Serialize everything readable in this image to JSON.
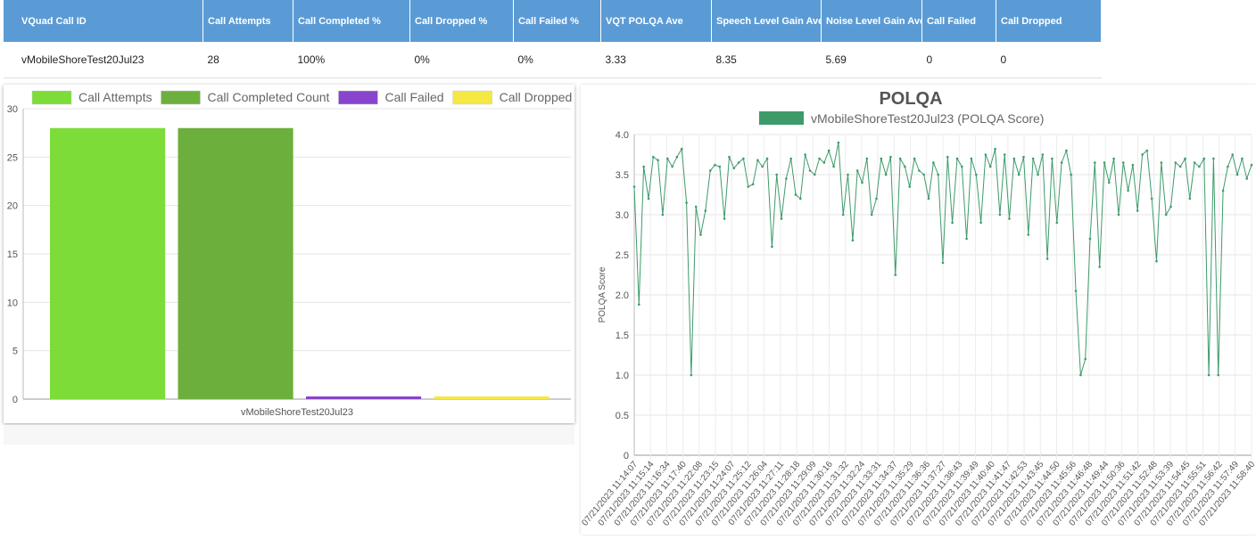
{
  "table": {
    "headers": [
      "VQuad Call ID",
      "Call Attempts",
      "Call Completed %",
      "Call Dropped %",
      "Call Failed %",
      "VQT POLQA Ave",
      "Speech Level Gain Ave",
      "Noise Level Gain Ave",
      "Call Failed",
      "Call Dropped"
    ],
    "rows": [
      [
        "vMobileShoreTest20Jul23",
        "28",
        "100%",
        "0%",
        "0%",
        "3.33",
        "8.35",
        "5.69",
        "0",
        "0"
      ]
    ]
  },
  "chart_data": [
    {
      "type": "bar",
      "title": "",
      "categories": [
        "vMobileShoreTest20Jul23"
      ],
      "series": [
        {
          "name": "Call Attempts",
          "values": [
            28
          ],
          "color": "#7ddc38"
        },
        {
          "name": "Call Completed Count",
          "values": [
            28
          ],
          "color": "#6daf3c"
        },
        {
          "name": "Call Failed",
          "values": [
            0
          ],
          "color": "#8844cc"
        },
        {
          "name": "Call Dropped",
          "values": [
            0
          ],
          "color": "#f4e842"
        }
      ],
      "xlabel": "",
      "ylabel": "",
      "ylim": [
        0,
        30
      ],
      "yticks": [
        0,
        5,
        10,
        15,
        20,
        25,
        30
      ],
      "legend": "top",
      "grid": true
    },
    {
      "type": "line",
      "title": "POLQA",
      "series_name": "vMobileShoreTest20Jul23 (POLQA Score)",
      "color": "#3d9b69",
      "xlabel": "",
      "ylabel": "POLQA Score",
      "ylim": [
        0,
        4.0
      ],
      "yticks": [
        "0",
        "0.5",
        "1.0",
        "1.5",
        "2.0",
        "2.5",
        "3.0",
        "3.5",
        "4.0"
      ],
      "xtick_labels": [
        "07/21/2023 11:14:07",
        "07/21/2023 11:15:14",
        "07/21/2023 11:16:34",
        "07/21/2023 11:17:40",
        "07/21/2023 11:22:08",
        "07/21/2023 11:23:15",
        "07/21/2023 11:24:07",
        "07/21/2023 11:25:12",
        "07/21/2023 11:26:04",
        "07/21/2023 11:27:11",
        "07/21/2023 11:28:18",
        "07/21/2023 11:29:09",
        "07/21/2023 11:30:16",
        "07/21/2023 11:31:32",
        "07/21/2023 11:32:24",
        "07/21/2023 11:33:31",
        "07/21/2023 11:34:37",
        "07/21/2023 11:35:29",
        "07/21/2023 11:36:36",
        "07/21/2023 11:37:27",
        "07/21/2023 11:38:43",
        "07/21/2023 11:39:49",
        "07/21/2023 11:40:40",
        "07/21/2023 11:41:47",
        "07/21/2023 11:42:53",
        "07/21/2023 11:43:45",
        "07/21/2023 11:44:50",
        "07/21/2023 11:45:56",
        "07/21/2023 11:46:48",
        "07/21/2023 11:49:44",
        "07/21/2023 11:50:36",
        "07/21/2023 11:51:42",
        "07/21/2023 11:52:48",
        "07/21/2023 11:53:39",
        "07/21/2023 11:54:45",
        "07/21/2023 11:55:51",
        "07/21/2023 11:56:42",
        "07/21/2023 11:57:49",
        "07/21/2023 11:58:40"
      ],
      "values": [
        3.35,
        1.88,
        3.6,
        3.2,
        3.72,
        3.68,
        3.0,
        3.7,
        3.6,
        3.72,
        3.82,
        3.15,
        1.0,
        3.1,
        2.75,
        3.05,
        3.55,
        3.62,
        3.6,
        2.95,
        3.72,
        3.58,
        3.65,
        3.7,
        3.35,
        3.38,
        3.68,
        3.6,
        3.7,
        2.6,
        3.5,
        2.95,
        3.45,
        3.7,
        3.25,
        3.2,
        3.75,
        3.55,
        3.5,
        3.7,
        3.65,
        3.8,
        3.6,
        3.9,
        3.0,
        3.5,
        2.68,
        3.55,
        3.4,
        3.7,
        3.0,
        3.2,
        3.7,
        3.5,
        3.72,
        2.25,
        3.7,
        3.6,
        3.35,
        3.7,
        3.55,
        3.5,
        3.2,
        3.65,
        3.5,
        2.4,
        3.72,
        2.9,
        3.7,
        3.6,
        2.7,
        3.7,
        3.5,
        2.9,
        3.75,
        3.6,
        3.82,
        3.0,
        3.75,
        2.95,
        3.7,
        3.5,
        3.72,
        2.75,
        3.7,
        3.5,
        3.75,
        2.45,
        3.7,
        2.9,
        3.65,
        3.8,
        3.5,
        2.05,
        1.0,
        1.2,
        2.7,
        3.65,
        2.35,
        3.65,
        3.4,
        3.7,
        3.0,
        3.65,
        3.3,
        3.62,
        3.05,
        3.75,
        3.8,
        3.2,
        2.42,
        3.65,
        3.0,
        3.1,
        3.65,
        3.6,
        3.7,
        3.2,
        3.65,
        3.6,
        3.7,
        1.0,
        3.7,
        1.0,
        3.3,
        3.6,
        3.75,
        3.5,
        3.7,
        3.45,
        3.62
      ]
    }
  ]
}
